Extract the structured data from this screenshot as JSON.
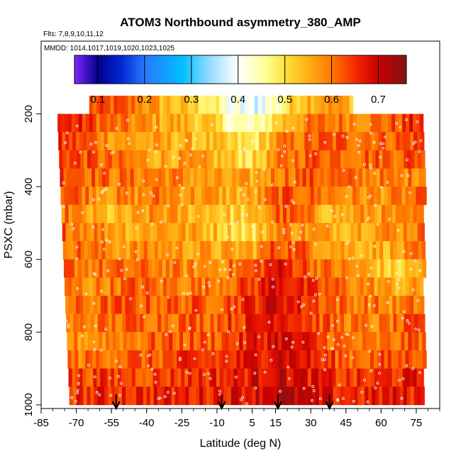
{
  "chart_data": {
    "type": "heatmap",
    "title": "ATOM3 Northbound asymmetry_380_AMP",
    "subtitle_flights": "Flts: 7,8,9,10,11,12",
    "subtitle_dates": "MMDD: 1014,1017,1019,1020,1023,1025",
    "xlabel": "Latitude (deg N)",
    "ylabel": "PSXC (mbar)",
    "x_ticks": [
      "-85",
      "-70",
      "-55",
      "-40",
      "-25",
      "-10",
      "5",
      "15",
      "30",
      "45",
      "60",
      "75"
    ],
    "x_tick_values": [
      -85,
      -70,
      -55,
      -40,
      -25,
      -10,
      5,
      15,
      30,
      45,
      60,
      75
    ],
    "y_ticks": [
      "200",
      "400",
      "600",
      "800",
      "1000"
    ],
    "y_tick_values": [
      200,
      400,
      600,
      800,
      1000
    ],
    "xlim": [
      -85,
      85
    ],
    "ylim": [
      1010,
      0
    ],
    "colorbar": {
      "ticks": [
        "0.1",
        "0.2",
        "0.3",
        "0.4",
        "0.5",
        "0.6",
        "0.7"
      ],
      "tick_values": [
        0.1,
        0.2,
        0.3,
        0.4,
        0.5,
        0.6,
        0.7
      ],
      "range": [
        0.05,
        0.76
      ]
    },
    "pressure_levels": [
      175,
      225,
      275,
      325,
      375,
      425,
      475,
      525,
      575,
      625,
      675,
      725,
      775,
      825,
      875,
      925,
      975
    ],
    "column_latitudes": [
      -75,
      -65,
      -55,
      -45,
      -35,
      -25,
      -15,
      -5,
      5,
      15,
      25,
      35,
      45,
      55,
      65,
      75
    ],
    "values": [
      [
        null,
        null,
        0.62,
        0.6,
        0.55,
        0.52,
        0.5,
        0.4,
        0.38,
        0.45,
        0.55,
        0.58,
        0.55,
        null,
        null,
        null
      ],
      [
        0.66,
        0.64,
        0.6,
        0.58,
        0.56,
        0.55,
        0.52,
        0.45,
        0.42,
        0.52,
        0.58,
        0.6,
        0.6,
        0.6,
        0.62,
        0.66
      ],
      [
        0.64,
        0.62,
        0.58,
        0.56,
        0.55,
        0.55,
        0.53,
        0.5,
        0.48,
        0.58,
        0.6,
        0.62,
        0.62,
        0.62,
        0.62,
        0.64
      ],
      [
        0.65,
        0.62,
        0.6,
        0.58,
        0.56,
        0.56,
        0.55,
        0.52,
        0.5,
        0.58,
        0.62,
        0.63,
        0.62,
        0.62,
        0.62,
        0.64
      ],
      [
        0.65,
        0.62,
        0.6,
        0.6,
        0.6,
        0.58,
        0.56,
        0.55,
        0.55,
        0.6,
        0.62,
        0.62,
        0.6,
        0.6,
        0.58,
        0.6
      ],
      [
        0.64,
        0.6,
        0.58,
        0.58,
        0.6,
        0.58,
        0.57,
        0.55,
        0.55,
        0.62,
        0.62,
        0.6,
        0.58,
        0.58,
        0.58,
        0.6
      ],
      [
        0.6,
        0.55,
        0.52,
        0.55,
        0.58,
        0.55,
        0.55,
        0.52,
        0.52,
        0.62,
        0.6,
        0.55,
        0.55,
        0.58,
        0.56,
        0.58
      ],
      [
        0.62,
        0.6,
        0.58,
        0.55,
        0.58,
        0.56,
        0.55,
        0.52,
        0.5,
        0.6,
        0.58,
        0.56,
        0.56,
        0.58,
        0.58,
        0.6
      ],
      [
        0.62,
        0.6,
        0.58,
        0.58,
        0.58,
        0.57,
        0.56,
        0.55,
        0.56,
        0.64,
        0.62,
        0.58,
        0.56,
        0.56,
        0.55,
        0.58
      ],
      [
        0.62,
        0.6,
        0.6,
        0.6,
        0.6,
        0.58,
        0.58,
        0.6,
        0.62,
        0.68,
        0.64,
        0.6,
        0.58,
        0.55,
        0.5,
        0.55
      ],
      [
        0.6,
        0.58,
        0.6,
        0.62,
        0.6,
        0.6,
        0.6,
        0.62,
        0.64,
        0.7,
        0.65,
        0.62,
        0.6,
        0.58,
        0.55,
        0.56
      ],
      [
        0.6,
        0.6,
        0.62,
        0.62,
        0.62,
        0.62,
        0.62,
        0.64,
        0.66,
        0.7,
        0.66,
        0.63,
        0.6,
        0.6,
        0.58,
        0.6
      ],
      [
        0.58,
        0.6,
        0.6,
        0.62,
        0.62,
        0.62,
        0.62,
        0.64,
        0.66,
        0.7,
        0.66,
        0.62,
        0.6,
        0.58,
        0.6,
        0.62
      ],
      [
        0.58,
        0.58,
        0.6,
        0.6,
        0.62,
        0.62,
        0.62,
        0.64,
        0.66,
        0.7,
        0.67,
        0.63,
        0.6,
        0.58,
        0.6,
        0.62
      ],
      [
        0.6,
        0.6,
        0.62,
        0.62,
        0.62,
        0.64,
        0.64,
        0.65,
        0.67,
        0.71,
        0.68,
        0.64,
        0.62,
        0.62,
        0.62,
        0.64
      ],
      [
        0.64,
        0.64,
        0.64,
        0.64,
        0.64,
        0.65,
        0.66,
        0.66,
        0.68,
        0.71,
        0.68,
        0.66,
        0.64,
        0.64,
        0.66,
        0.66
      ],
      [
        0.65,
        0.65,
        0.66,
        0.66,
        0.66,
        0.66,
        0.67,
        0.68,
        0.69,
        0.72,
        0.7,
        0.67,
        0.66,
        0.66,
        0.67,
        0.66
      ]
    ],
    "arrow_latitudes": [
      -53,
      -8,
      16,
      38
    ]
  }
}
